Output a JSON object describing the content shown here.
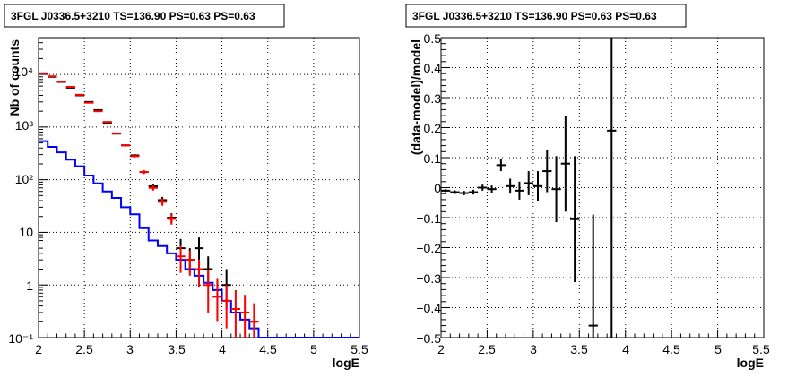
{
  "panels": [
    {
      "title": "3FGL J0336.5+3210 TS=136.90 PS=0.63 PS=0.63",
      "xlabel": "logE",
      "ylabel": "Nb of counts",
      "xticks": [
        "2",
        "2.5",
        "3",
        "3.5",
        "4",
        "4.5",
        "5",
        "5.5"
      ],
      "yticks": [
        "10⁻¹",
        "1",
        "10",
        "10²",
        "10³",
        "10⁴"
      ]
    },
    {
      "title": "3FGL J0336.5+3210 TS=136.90 PS=0.63 PS=0.63",
      "xlabel": "logE",
      "ylabel": "(data-model)/model",
      "xticks": [
        "2",
        "2.5",
        "3",
        "3.5",
        "4",
        "4.5",
        "5",
        "5.5"
      ],
      "yticks": [
        "−0.5",
        "−0.4",
        "−0.3",
        "−0.2",
        "−0.1",
        "0",
        "0.1",
        "0.2",
        "0.3",
        "0.4",
        "0.5"
      ]
    }
  ],
  "chart_data": [
    {
      "type": "line",
      "title": "3FGL J0336.5+3210 TS=136.90 PS=0.63 PS=0.63",
      "xlabel": "logE",
      "ylabel": "Nb of counts",
      "log_y": true,
      "xlim": [
        2,
        5.5
      ],
      "ylim": [
        0.1,
        50000
      ],
      "grid": true,
      "bin_width": 0.1,
      "series": [
        {
          "color": "#000000",
          "style": "points-with-errors",
          "x": [
            2.05,
            2.15,
            2.25,
            2.35,
            2.45,
            2.55,
            2.65,
            2.75,
            2.85,
            2.95,
            3.05,
            3.15,
            3.25,
            3.35,
            3.45,
            3.55,
            3.65,
            3.75,
            3.85,
            3.95,
            4.05
          ],
          "y": [
            10500,
            9000,
            7200,
            5600,
            4000,
            3000,
            2100,
            1200,
            750,
            450,
            290,
            140,
            75,
            41,
            19,
            5,
            3,
            5,
            2,
            0.6,
            1
          ],
          "ylow": [
            10400,
            8900,
            7100,
            5500,
            3950,
            2950,
            2050,
            1170,
            725,
            430,
            275,
            128,
            66,
            35,
            15,
            3,
            1.7,
            3,
            1,
            0.2,
            0.35
          ],
          "yhigh": [
            10600,
            9100,
            7300,
            5700,
            4050,
            3050,
            2150,
            1230,
            775,
            470,
            305,
            152,
            84,
            47,
            23,
            7.5,
            5,
            8,
            3.5,
            1.3,
            2
          ]
        },
        {
          "color": "#ff0000",
          "style": "points-with-errors",
          "x": [
            2.05,
            2.15,
            2.25,
            2.35,
            2.45,
            2.55,
            2.65,
            2.75,
            2.85,
            2.95,
            3.05,
            3.15,
            3.25,
            3.35,
            3.45,
            3.55,
            3.65,
            3.75,
            3.85,
            3.95,
            4.05,
            4.15,
            4.25,
            4.35
          ],
          "y": [
            10400,
            9200,
            7300,
            5800,
            4100,
            2900,
            2000,
            1250,
            760,
            450,
            280,
            140,
            70,
            38,
            18,
            3.5,
            3,
            2,
            1,
            0.6,
            0.5,
            0.35,
            0.3,
            0.2
          ],
          "ylow": [
            10300,
            9100,
            7200,
            5700,
            4050,
            2850,
            1960,
            1220,
            735,
            430,
            265,
            128,
            62,
            32,
            14,
            1.7,
            1.5,
            0.9,
            0.3,
            0.2,
            0.15,
            0.1,
            0.1,
            0.1
          ],
          "yhigh": [
            10500,
            9300,
            7400,
            5900,
            4150,
            2950,
            2040,
            1280,
            785,
            470,
            295,
            152,
            78,
            44,
            22,
            5.5,
            4.5,
            3,
            2,
            1.3,
            1,
            0.8,
            0.65,
            0.45
          ]
        },
        {
          "color": "#0000ff",
          "style": "step",
          "x": [
            2.0,
            2.1,
            2.2,
            2.3,
            2.4,
            2.5,
            2.6,
            2.7,
            2.8,
            2.9,
            3.0,
            3.1,
            3.2,
            3.3,
            3.4,
            3.5,
            3.6,
            3.7,
            3.8,
            3.9,
            4.0,
            4.1,
            4.2,
            4.3,
            4.4,
            4.5,
            4.6,
            4.7,
            4.8,
            4.9,
            5.0,
            5.1,
            5.2,
            5.3,
            5.4,
            5.5
          ],
          "y": [
            540,
            420,
            330,
            240,
            180,
            120,
            85,
            60,
            45,
            30,
            22,
            12,
            7,
            5.5,
            4,
            3,
            2,
            1.5,
            1.1,
            0.8,
            0.5,
            0.3,
            0.22,
            0.15,
            0.1,
            0.1,
            0.1,
            0.1,
            0.1,
            0.1,
            0.1,
            0.1,
            0.1,
            0.1,
            0.1,
            0.1
          ]
        }
      ]
    },
    {
      "type": "scatter",
      "title": "3FGL J0336.5+3210 TS=136.90 PS=0.63 PS=0.63",
      "xlabel": "logE",
      "ylabel": "(data-model)/model",
      "xlim": [
        2,
        5.5
      ],
      "ylim": [
        -0.5,
        0.5
      ],
      "grid": true,
      "bin_width": 0.1,
      "series": [
        {
          "color": "#000000",
          "style": "points-with-errors",
          "x": [
            2.05,
            2.15,
            2.25,
            2.35,
            2.45,
            2.55,
            2.65,
            2.75,
            2.85,
            2.95,
            3.05,
            3.15,
            3.25,
            3.35,
            3.45,
            3.65,
            3.85
          ],
          "y": [
            -0.01,
            -0.015,
            -0.018,
            -0.015,
            0.0,
            -0.005,
            0.075,
            0.005,
            -0.01,
            0.015,
            0.005,
            0.055,
            -0.005,
            0.08,
            -0.105,
            -0.46,
            0.19
          ],
          "err": [
            0.005,
            0.006,
            0.007,
            0.008,
            0.01,
            0.012,
            0.02,
            0.025,
            0.03,
            0.04,
            0.05,
            0.07,
            0.11,
            0.16,
            0.21,
            0.37,
            0.7
          ]
        }
      ]
    }
  ]
}
